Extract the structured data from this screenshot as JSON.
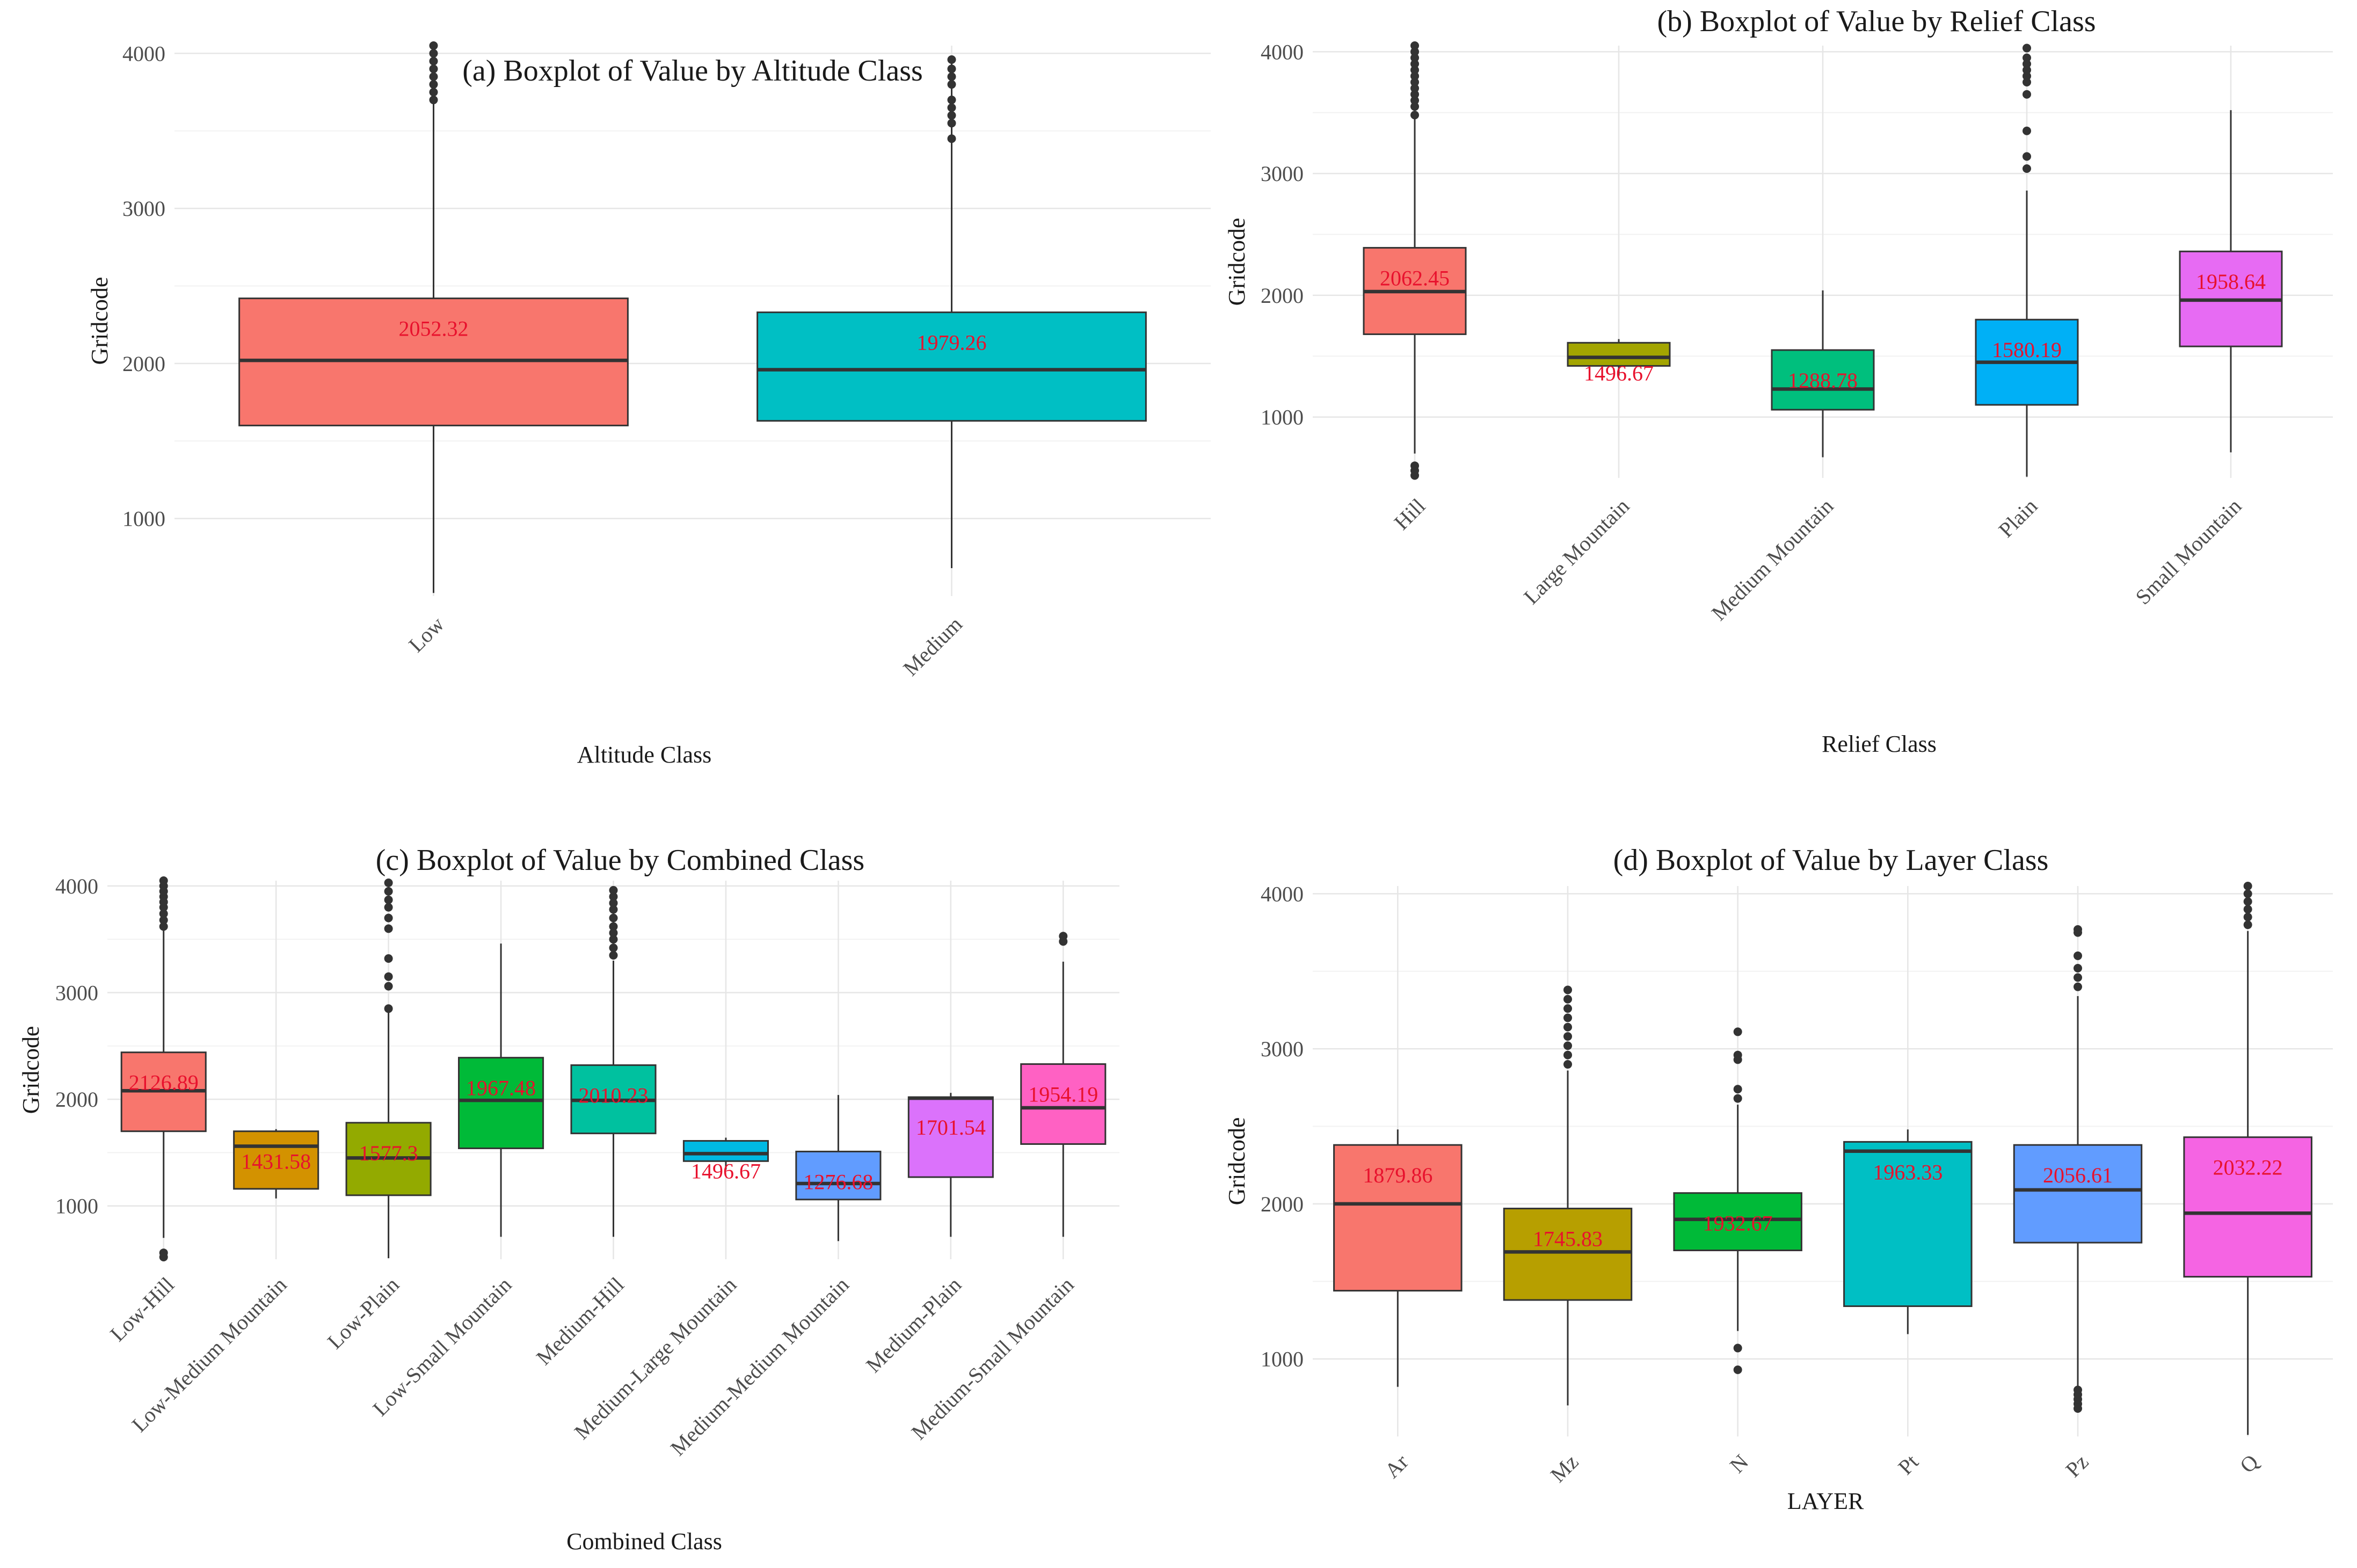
{
  "chart_data": [
    {
      "type": "box",
      "id": "a",
      "title": "(a) Boxplot of Value by Altitude Class",
      "xlabel": "Altitude Class",
      "ylabel": "Gridcode",
      "ylim": [
        500,
        4050
      ],
      "yticks": [
        1000,
        2000,
        3000,
        4000
      ],
      "categories": [
        "Low",
        "Medium"
      ],
      "boxes": [
        {
          "category": "Low",
          "color": "#F8766D",
          "whisker_low": 520,
          "q1": 1600,
          "median": 2020,
          "q3": 2420,
          "whisker_high": 4060,
          "mean_label": "2052.32",
          "outliers": [
            3700,
            3750,
            3800,
            3850,
            3900,
            3950,
            4000,
            4050
          ]
        },
        {
          "category": "Medium",
          "color": "#00BFC4",
          "whisker_low": 680,
          "q1": 1630,
          "median": 1960,
          "q3": 2330,
          "whisker_high": 3960,
          "mean_label": "1979.26",
          "outliers": [
            3450,
            3550,
            3600,
            3650,
            3700,
            3800,
            3850,
            3900,
            3960
          ]
        }
      ]
    },
    {
      "type": "box",
      "id": "b",
      "title": "(b) Boxplot of Value by Relief Class",
      "xlabel": "Relief Class",
      "ylabel": "Gridcode",
      "ylim": [
        500,
        4050
      ],
      "yticks": [
        1000,
        2000,
        3000,
        4000
      ],
      "categories": [
        "Hill",
        "Large Mountain",
        "Medium Mountain",
        "Plain",
        "Small Mountain"
      ],
      "boxes": [
        {
          "category": "Hill",
          "color": "#F8766D",
          "whisker_low": 700,
          "q1": 1680,
          "median": 2030,
          "q3": 2390,
          "whisker_high": 3470,
          "mean_label": "2062.45",
          "outliers": [
            520,
            560,
            600,
            3480,
            3550,
            3600,
            3650,
            3700,
            3750,
            3800,
            3850,
            3900,
            3950,
            4000,
            4050
          ]
        },
        {
          "category": "Large Mountain",
          "color": "#A3A500",
          "whisker_low": 1340,
          "q1": 1420,
          "median": 1490,
          "q3": 1610,
          "whisker_high": 1640,
          "mean_label": "1496.67",
          "outliers": []
        },
        {
          "category": "Medium Mountain",
          "color": "#00BF7D",
          "whisker_low": 670,
          "q1": 1060,
          "median": 1230,
          "q3": 1550,
          "whisker_high": 2040,
          "mean_label": "1288.78",
          "outliers": []
        },
        {
          "category": "Plain",
          "color": "#00B0F6",
          "whisker_low": 510,
          "q1": 1100,
          "median": 1450,
          "q3": 1800,
          "whisker_high": 2860,
          "mean_label": "1580.19",
          "outliers": [
            3040,
            3140,
            3350,
            3650,
            3750,
            3800,
            3850,
            3900,
            3950,
            4030
          ]
        },
        {
          "category": "Small Mountain",
          "color": "#E76BF3",
          "whisker_low": 710,
          "q1": 1580,
          "median": 1960,
          "q3": 2360,
          "whisker_high": 3520,
          "mean_label": "1958.64",
          "outliers": []
        }
      ]
    },
    {
      "type": "box",
      "id": "c",
      "title": "(c) Boxplot of Value by Combined Class",
      "xlabel": "Combined Class",
      "ylabel": "Gridcode",
      "ylim": [
        500,
        4050
      ],
      "yticks": [
        1000,
        2000,
        3000,
        4000
      ],
      "categories": [
        "Low-Hill",
        "Low-Medium Mountain",
        "Low-Plain",
        "Low-Small Mountain",
        "Medium-Hill",
        "Medium-Large Mountain",
        "Medium-Medium Mountain",
        "Medium-Plain",
        "Medium-Small Mountain"
      ],
      "boxes": [
        {
          "category": "Low-Hill",
          "color": "#F8766D",
          "whisker_low": 700,
          "q1": 1700,
          "median": 2080,
          "q3": 2440,
          "whisker_high": 3600,
          "mean_label": "2126.89",
          "outliers": [
            520,
            560,
            3620,
            3680,
            3740,
            3800,
            3850,
            3900,
            3950,
            4000,
            4050
          ]
        },
        {
          "category": "Low-Medium Mountain",
          "color": "#D39200",
          "whisker_low": 1070,
          "q1": 1160,
          "median": 1560,
          "q3": 1700,
          "whisker_high": 1720,
          "mean_label": "1431.58",
          "outliers": []
        },
        {
          "category": "Low-Plain",
          "color": "#93AA00",
          "whisker_low": 510,
          "q1": 1100,
          "median": 1450,
          "q3": 1780,
          "whisker_high": 2830,
          "mean_label": "1577.3",
          "outliers": [
            2850,
            3060,
            3150,
            3320,
            3600,
            3700,
            3800,
            3870,
            3950,
            4030
          ]
        },
        {
          "category": "Low-Small Mountain",
          "color": "#00BA38",
          "whisker_low": 710,
          "q1": 1540,
          "median": 1990,
          "q3": 2390,
          "whisker_high": 3460,
          "mean_label": "1967.48",
          "outliers": []
        },
        {
          "category": "Medium-Hill",
          "color": "#00C19F",
          "whisker_low": 710,
          "q1": 1680,
          "median": 1990,
          "q3": 2320,
          "whisker_high": 3300,
          "mean_label": "2010.23",
          "outliers": [
            3350,
            3420,
            3500,
            3560,
            3620,
            3700,
            3780,
            3840,
            3900,
            3960
          ]
        },
        {
          "category": "Medium-Large Mountain",
          "color": "#00B9E3",
          "whisker_low": 1340,
          "q1": 1420,
          "median": 1490,
          "q3": 1610,
          "whisker_high": 1640,
          "mean_label": "1496.67",
          "outliers": []
        },
        {
          "category": "Medium-Medium Mountain",
          "color": "#619CFF",
          "whisker_low": 670,
          "q1": 1060,
          "median": 1210,
          "q3": 1510,
          "whisker_high": 2040,
          "mean_label": "1276.68",
          "outliers": []
        },
        {
          "category": "Medium-Plain",
          "color": "#DB72FB",
          "whisker_low": 710,
          "q1": 1270,
          "median": 2010,
          "q3": 2020,
          "whisker_high": 2060,
          "mean_label": "1701.54",
          "outliers": []
        },
        {
          "category": "Medium-Small Mountain",
          "color": "#FF61C3",
          "whisker_low": 710,
          "q1": 1580,
          "median": 1920,
          "q3": 2330,
          "whisker_high": 3290,
          "mean_label": "1954.19",
          "outliers": [
            3480,
            3530
          ]
        }
      ]
    },
    {
      "type": "box",
      "id": "d",
      "title": "(d) Boxplot of Value by Layer Class",
      "xlabel": "LAYER",
      "ylabel": "Gridcode",
      "ylim": [
        500,
        4050
      ],
      "yticks": [
        1000,
        2000,
        3000,
        4000
      ],
      "categories": [
        "Ar",
        "Mz",
        "N",
        "Pt",
        "Pz",
        "Q"
      ],
      "boxes": [
        {
          "category": "Ar",
          "color": "#F8766D",
          "whisker_low": 820,
          "q1": 1440,
          "median": 2000,
          "q3": 2380,
          "whisker_high": 2480,
          "mean_label": "1879.86",
          "outliers": []
        },
        {
          "category": "Mz",
          "color": "#B79F00",
          "whisker_low": 700,
          "q1": 1380,
          "median": 1690,
          "q3": 1970,
          "whisker_high": 2860,
          "mean_label": "1745.83",
          "outliers": [
            2900,
            2960,
            3020,
            3080,
            3140,
            3200,
            3260,
            3320,
            3380
          ]
        },
        {
          "category": "N",
          "color": "#00BA38",
          "whisker_low": 1180,
          "q1": 1700,
          "median": 1900,
          "q3": 2070,
          "whisker_high": 2640,
          "mean_label": "1932.67",
          "outliers": [
            930,
            1070,
            2680,
            2740,
            2930,
            2960,
            3110
          ]
        },
        {
          "category": "Pt",
          "color": "#00BFC4",
          "whisker_low": 1160,
          "q1": 1340,
          "median": 2340,
          "q3": 2400,
          "whisker_high": 2480,
          "mean_label": "1963.33",
          "outliers": []
        },
        {
          "category": "Pz",
          "color": "#619CFF",
          "whisker_low": 810,
          "q1": 1750,
          "median": 2090,
          "q3": 2380,
          "whisker_high": 3340,
          "mean_label": "2056.61",
          "outliers": [
            680,
            710,
            740,
            770,
            800,
            3400,
            3460,
            3520,
            3600,
            3750,
            3770
          ]
        },
        {
          "category": "Q",
          "color": "#F564E3",
          "whisker_low": 510,
          "q1": 1530,
          "median": 1940,
          "q3": 2430,
          "whisker_high": 3760,
          "mean_label": "2032.22",
          "outliers": [
            3800,
            3850,
            3900,
            3950,
            4000,
            4050
          ]
        }
      ]
    }
  ]
}
